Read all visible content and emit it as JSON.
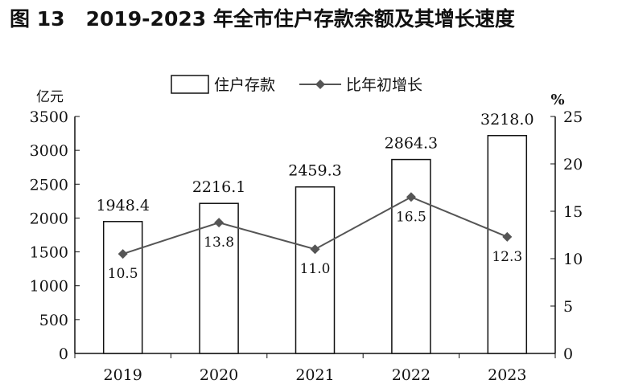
{
  "chart_data": {
    "type": "bar+line",
    "title": "图 13   2019-2023 年全市住户存款余额及其增长速度",
    "categories": [
      "2019",
      "2020",
      "2021",
      "2022",
      "2023"
    ],
    "series": [
      {
        "name": "住户存款",
        "type": "bar",
        "axis": "left",
        "values": [
          1948.4,
          2216.1,
          2459.3,
          2864.3,
          3218.0
        ],
        "labels": [
          "1948.4",
          "2216.1",
          "2459.3",
          "2864.3",
          "3218.0"
        ]
      },
      {
        "name": "比年初增长",
        "type": "line",
        "axis": "right",
        "values": [
          10.5,
          13.8,
          11.0,
          16.5,
          12.3
        ],
        "labels": [
          "10.5",
          "13.8",
          "11.0",
          "16.5",
          "12.3"
        ]
      }
    ],
    "y_left": {
      "label": "亿元",
      "range": [
        0,
        3500
      ],
      "ticks": [
        "0",
        "500",
        "1000",
        "1500",
        "2000",
        "2500",
        "3000",
        "3500"
      ]
    },
    "y_right": {
      "label": "%",
      "range": [
        0,
        25
      ],
      "ticks": [
        "0",
        "5",
        "10",
        "15",
        "20",
        "25"
      ]
    },
    "grid": false,
    "legend": "top-center",
    "colors": {
      "bar_fill": "#ffffff",
      "bar_stroke": "#111111",
      "line": "#555555",
      "marker": "#555555"
    }
  }
}
